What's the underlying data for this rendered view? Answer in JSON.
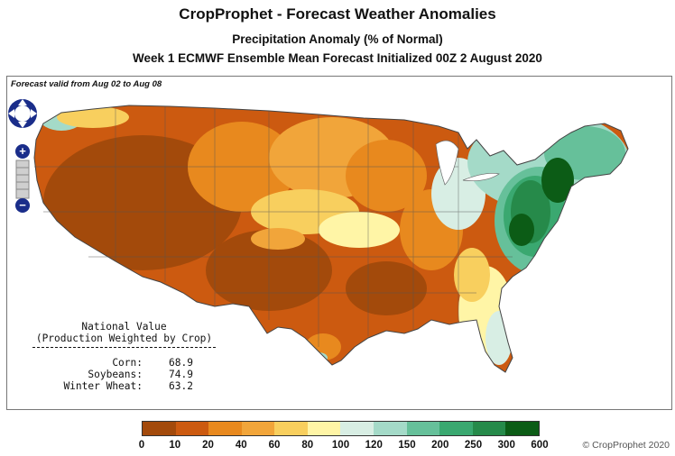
{
  "header": {
    "title": "CropProphet - Forecast Weather Anomalies",
    "subtitle": "Precipitation Anomaly (% of Normal)",
    "forecast_line": "Week 1 ECMWF Ensemble Mean Forecast Initialized 00Z 2 August 2020"
  },
  "map": {
    "valid_label": "Forecast valid from Aug 02 to Aug 08",
    "controls": {
      "zoom_in": "+",
      "zoom_out": "−"
    }
  },
  "national": {
    "heading1": "National Value",
    "heading2": "(Production Weighted by Crop)",
    "items": [
      {
        "crop": "Corn:",
        "value": "68.9"
      },
      {
        "crop": "Soybeans:",
        "value": "74.9"
      },
      {
        "crop": "Winter Wheat:",
        "value": "63.2"
      }
    ]
  },
  "legend": {
    "ticks": [
      "0",
      "10",
      "20",
      "40",
      "60",
      "80",
      "100",
      "120",
      "150",
      "200",
      "250",
      "300",
      "600"
    ],
    "colors": [
      "#a34a0b",
      "#cc5a10",
      "#e8891e",
      "#f1a53a",
      "#f8cf5e",
      "#fff5a6",
      "#d8eee4",
      "#a4dac8",
      "#66c09a",
      "#3aa870",
      "#268a4a",
      "#0c5c16"
    ]
  },
  "copyright": "© CropProphet 2020"
}
